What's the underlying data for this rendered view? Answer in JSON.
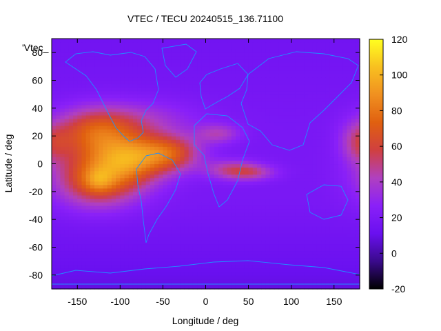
{
  "chart_data": {
    "type": "heatmap",
    "title": "VTEC / TECU 20240515_136.71100",
    "xlabel": "Longitude / deg",
    "ylabel": "Latitude / deg",
    "series_key": "'Vtec_",
    "xlim": [
      -180,
      180
    ],
    "ylim": [
      -90,
      90
    ],
    "xticks": [
      -150,
      -100,
      -50,
      0,
      50,
      100,
      150
    ],
    "yticks": [
      -80,
      -60,
      -40,
      -20,
      0,
      20,
      40,
      60,
      80
    ],
    "colorbar": {
      "range": [
        -20,
        120
      ],
      "ticks": [
        -20,
        0,
        20,
        40,
        60,
        80,
        100,
        120
      ],
      "palette": [
        "#000000",
        "#3a0a8c",
        "#6a10f0",
        "#8a20f8",
        "#b040c0",
        "#d04040",
        "#e06010",
        "#f09020",
        "#f8c020",
        "#ffff20"
      ]
    },
    "field": {
      "background_tecu": 15,
      "equatorial_peak": {
        "lon": -125,
        "lat": -12,
        "tecu": 108
      },
      "anomalies": [
        {
          "lon": -125,
          "lat": -10,
          "tecu": 55,
          "sigma_lon": 35,
          "sigma_lat": 14
        },
        {
          "lon": -85,
          "lat": 5,
          "tecu": 52,
          "sigma_lon": 30,
          "sigma_lat": 12
        },
        {
          "lon": -130,
          "lat": 22,
          "tecu": 45,
          "sigma_lon": 32,
          "sigma_lat": 12
        },
        {
          "lon": -40,
          "lat": 8,
          "tecu": 40,
          "sigma_lon": 25,
          "sigma_lat": 9
        },
        {
          "lon": 30,
          "lat": -4,
          "tecu": 26,
          "sigma_lon": 22,
          "sigma_lat": 5
        },
        {
          "lon": 55,
          "lat": -6,
          "tecu": 22,
          "sigma_lon": 20,
          "sigma_lat": 4
        },
        {
          "lon": 15,
          "lat": 22,
          "tecu": 22,
          "sigma_lon": 18,
          "sigma_lat": 5
        },
        {
          "lon": -80,
          "lat": 32,
          "tecu": 18,
          "sigma_lon": 50,
          "sigma_lat": 10
        },
        {
          "lon": 180,
          "lat": 15,
          "tecu": 25,
          "sigma_lon": 15,
          "sigma_lat": 10
        }
      ]
    }
  }
}
